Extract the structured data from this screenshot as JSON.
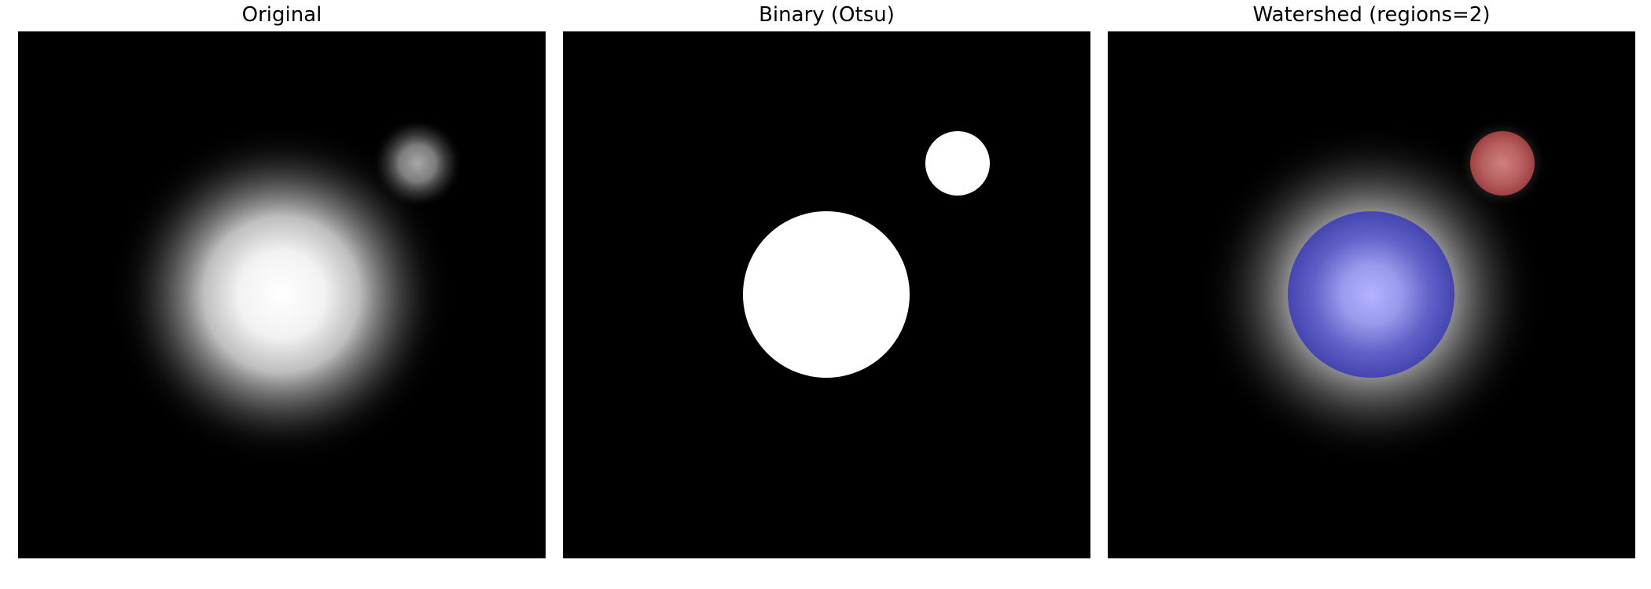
{
  "panels": [
    {
      "title": "Original"
    },
    {
      "title": "Binary (Otsu)"
    },
    {
      "title": "Watershed (regions=2)"
    }
  ],
  "colors": {
    "background": "#000000",
    "binary_foreground": "#ffffff",
    "region_large": "#4545b0",
    "region_large_highlight": "#b3b3ff",
    "region_small": "#b35050",
    "region_small_highlight": "#cf8080"
  }
}
